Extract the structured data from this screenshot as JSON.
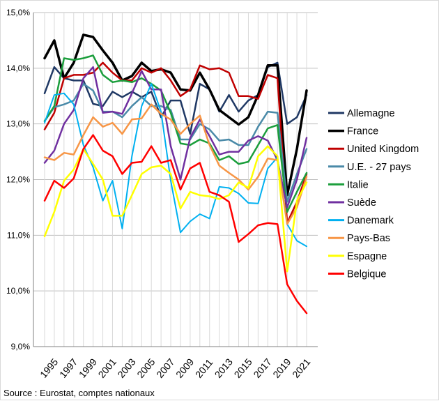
{
  "chart_data": {
    "type": "line",
    "x": [
      1995,
      1996,
      1997,
      1998,
      1999,
      2000,
      2001,
      2002,
      2003,
      2004,
      2005,
      2006,
      2007,
      2008,
      2009,
      2010,
      2011,
      2012,
      2013,
      2014,
      2015,
      2016,
      2017,
      2018,
      2019,
      2020,
      2021,
      2022
    ],
    "x_tick_labels": [
      "1995",
      "1997",
      "1999",
      "2001",
      "2003",
      "2005",
      "2007",
      "2009",
      "2011",
      "2013",
      "2015",
      "2017",
      "2019",
      "2021"
    ],
    "ylim": [
      9.0,
      15.0
    ],
    "y_tick_labels": [
      "9,0%",
      "10,0%",
      "11,0%",
      "12,0%",
      "13,0%",
      "14,0%",
      "15,0%"
    ],
    "grid": true,
    "legend_position": "right",
    "series": [
      {
        "name": "Allemagne",
        "color": "#1f3864",
        "width": 2.5,
        "values": [
          13.55,
          14.02,
          13.82,
          13.78,
          13.78,
          13.36,
          13.32,
          13.58,
          13.48,
          13.58,
          13.48,
          13.58,
          13.12,
          13.42,
          13.42,
          12.82,
          13.72,
          13.62,
          13.22,
          13.52,
          13.22,
          13.42,
          13.52,
          14.02,
          14.1,
          13.0,
          13.12,
          13.52
        ]
      },
      {
        "name": "France",
        "color": "#000000",
        "width": 3.5,
        "values": [
          14.18,
          14.5,
          13.82,
          14.1,
          14.6,
          14.56,
          14.32,
          14.1,
          13.78,
          13.86,
          14.1,
          13.95,
          13.98,
          13.92,
          13.62,
          13.6,
          13.92,
          13.62,
          13.25,
          13.12,
          12.99,
          13.12,
          13.52,
          14.05,
          14.05,
          11.72,
          12.55,
          13.6
        ]
      },
      {
        "name": "United Kingdom",
        "color": "#c00000",
        "width": 2.5,
        "values": [
          12.9,
          13.2,
          13.82,
          13.88,
          13.88,
          13.92,
          14.1,
          13.92,
          13.78,
          13.78,
          14.0,
          13.92,
          14.0,
          13.78,
          13.5,
          13.62,
          14.05,
          13.98,
          14.0,
          13.92,
          13.5,
          13.5,
          13.45,
          13.88,
          13.82,
          11.22,
          11.6,
          12.1
        ]
      },
      {
        "name": "U.E. - 27 pays",
        "color": "#4a8aa8",
        "width": 2.5,
        "values": [
          13.05,
          13.3,
          13.35,
          13.42,
          13.72,
          13.6,
          13.22,
          13.22,
          13.12,
          13.32,
          13.48,
          13.32,
          13.32,
          13.25,
          12.72,
          12.72,
          13.0,
          12.9,
          12.7,
          12.72,
          12.62,
          12.62,
          12.95,
          13.22,
          13.2,
          11.6,
          12.1,
          12.55
        ]
      },
      {
        "name": "Italie",
        "color": "#1b9e3c",
        "width": 2.5,
        "values": [
          13.05,
          13.32,
          14.18,
          14.15,
          14.18,
          14.23,
          13.88,
          13.75,
          13.78,
          13.75,
          13.82,
          13.72,
          13.6,
          13.2,
          12.65,
          12.62,
          12.72,
          12.65,
          12.35,
          12.42,
          12.28,
          12.32,
          12.62,
          12.92,
          12.98,
          11.42,
          11.78,
          12.12
        ]
      },
      {
        "name": "Suède",
        "color": "#7030a0",
        "width": 2.5,
        "values": [
          12.3,
          12.52,
          13.0,
          13.25,
          13.82,
          14.02,
          13.2,
          13.22,
          13.18,
          13.55,
          13.95,
          13.62,
          13.62,
          12.6,
          12.0,
          12.75,
          13.08,
          12.78,
          12.45,
          12.5,
          12.5,
          12.7,
          12.78,
          12.7,
          12.35,
          11.5,
          12.0,
          12.75
        ]
      },
      {
        "name": "Danemark",
        "color": "#00b0f0",
        "width": 2.0,
        "values": [
          13.02,
          13.52,
          13.55,
          13.35,
          12.62,
          12.22,
          11.62,
          11.98,
          11.12,
          12.42,
          13.32,
          13.72,
          13.22,
          11.98,
          11.05,
          11.25,
          11.38,
          11.3,
          11.87,
          11.85,
          11.75,
          11.58,
          11.57,
          12.2,
          12.4,
          11.2,
          10.9,
          10.8
        ]
      },
      {
        "name": "Pays-Bas",
        "color": "#f79646",
        "width": 2.5,
        "values": [
          12.4,
          12.35,
          12.48,
          12.45,
          12.8,
          13.12,
          12.95,
          13.02,
          12.82,
          13.08,
          13.1,
          13.35,
          13.18,
          13.08,
          12.82,
          13.0,
          13.15,
          12.62,
          12.25,
          12.12,
          12.0,
          11.82,
          12.05,
          12.38,
          12.35,
          11.2,
          11.5,
          12.05
        ]
      },
      {
        "name": "Espagne",
        "color": "#ffff00",
        "width": 2.5,
        "values": [
          10.98,
          11.42,
          11.98,
          12.18,
          12.55,
          12.28,
          12.0,
          11.35,
          11.35,
          11.72,
          12.1,
          12.22,
          12.25,
          12.1,
          11.48,
          11.78,
          11.72,
          11.7,
          11.65,
          11.72,
          11.95,
          11.85,
          12.42,
          12.6,
          12.42,
          10.35,
          11.62,
          11.95
        ]
      },
      {
        "name": "Belgique",
        "color": "#ff0000",
        "width": 2.5,
        "values": [
          11.62,
          11.98,
          11.85,
          12.02,
          12.55,
          12.8,
          12.52,
          12.42,
          12.1,
          12.3,
          12.32,
          12.6,
          12.3,
          12.35,
          11.82,
          12.2,
          12.3,
          11.78,
          11.72,
          11.6,
          10.88,
          11.02,
          11.18,
          11.22,
          11.2,
          10.12,
          9.82,
          9.6
        ]
      }
    ],
    "source": "Source : Eurostat, comptes nationaux"
  }
}
